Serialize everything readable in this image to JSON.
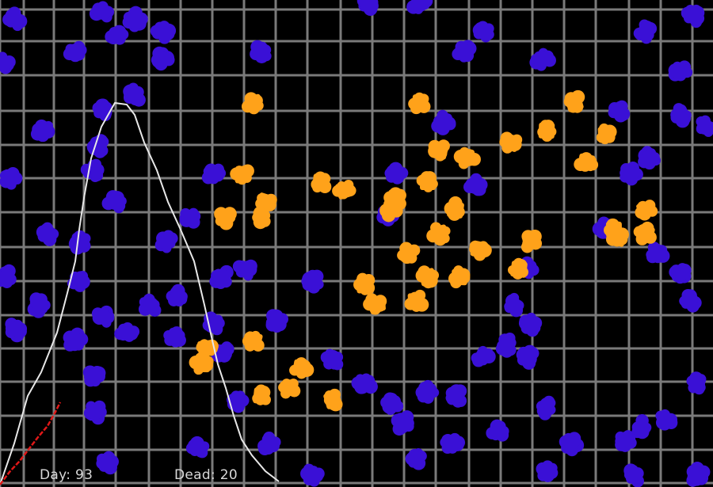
{
  "hud": {
    "day_label": "Day:",
    "day_value": "93",
    "dead_label": "Dead:",
    "dead_value": "20"
  },
  "colors": {
    "background": "#000000",
    "grid": "#7a7a7a",
    "healthy": "#3a10d6",
    "infected": "#ffa21a",
    "healthy_curve": "#e8e8e8",
    "dead_curve": "#e01818"
  },
  "population": {
    "infected_count": 58
  }
}
